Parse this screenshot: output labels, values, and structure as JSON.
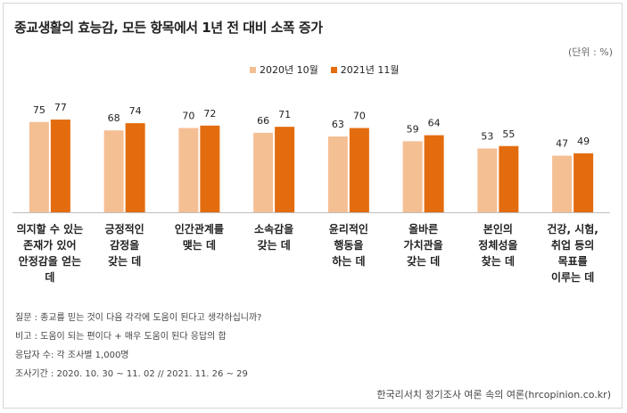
{
  "chart_data": {
    "type": "bar",
    "title": "종교생활의 효능감, 모든 항목에서 1년 전 대비 소폭 증가",
    "unit_label": "(단위 : %)",
    "categories": [
      [
        "의지할 수 있는",
        "존재가 있어",
        "안정감을 얻는",
        "데"
      ],
      [
        "긍정적인",
        "감정을",
        "갖는 데"
      ],
      [
        "인간관계를",
        "맺는 데"
      ],
      [
        "소속감을",
        "갖는 데"
      ],
      [
        "윤리적인",
        "행동을",
        "하는 데"
      ],
      [
        "올바른",
        "가치관을",
        "갖는 데"
      ],
      [
        "본인의",
        "정체성을",
        "찾는 데"
      ],
      [
        "건강, 시험,",
        "취업 등의",
        "목표를",
        "이루는 데"
      ]
    ],
    "series": [
      {
        "name": "2020년 10월",
        "color": "#f5bf94",
        "values": [
          75,
          68,
          70,
          66,
          63,
          59,
          53,
          47
        ]
      },
      {
        "name": "2021년 11월",
        "color": "#e36c0f",
        "values": [
          77,
          74,
          72,
          71,
          70,
          64,
          55,
          49
        ]
      }
    ],
    "ylim": [
      0,
      100
    ],
    "legend": "top-center",
    "grid": false
  },
  "notes": {
    "question": "질문 : 종교를 믿는 것이 다음 각각에 도움이 된다고 생각하십니까?",
    "note": "비고 : 도움이 되는 편이다 + 매우 도움이 된다 응답의 합",
    "respondents": "응답자 수: 각 조사별 1,000명",
    "period": "조사기간 : 2020. 10. 30 ~ 11. 02 // 2021. 11. 26 ~ 29"
  },
  "source": "한국리서치 정기조사 여론 속의 여론(hrcopinion.co.kr)"
}
